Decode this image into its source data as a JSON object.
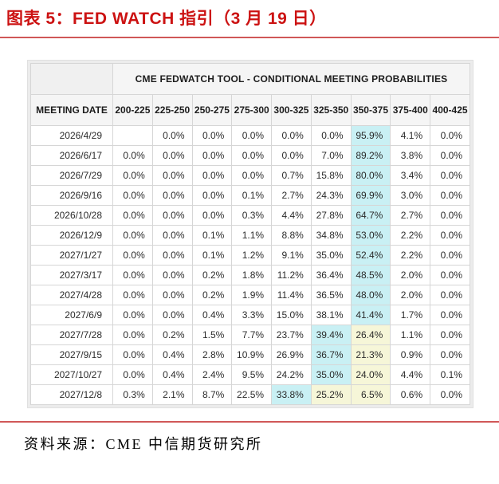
{
  "title": "图表 5：FED WATCH 指引（3 月 19 日）",
  "source": "资料来源：CME  中信期货研究所",
  "colors": {
    "accent_red": "#cc1212",
    "rule_red": "#d05858",
    "highlight_cyan": "#c9f0f4",
    "highlight_yellow": "#f6f6d8",
    "header_bg": "#f5f5f5",
    "grid_border": "#d6d6d6"
  },
  "table": {
    "spanner": "CME FEDWATCH TOOL - CONDITIONAL MEETING PROBABILITIES",
    "date_header": "MEETING DATE",
    "rate_headers": [
      "200-225",
      "225-250",
      "250-275",
      "275-300",
      "300-325",
      "325-350",
      "350-375",
      "375-400",
      "400-425"
    ],
    "rows": [
      {
        "date": "2026/4/29",
        "values": [
          "",
          "0.0%",
          "0.0%",
          "0.0%",
          "0.0%",
          "0.0%",
          "95.9%",
          "4.1%",
          "0.0%"
        ],
        "highlights": [
          "",
          "",
          "",
          "",
          "",
          "",
          "cyan",
          "",
          ""
        ]
      },
      {
        "date": "2026/6/17",
        "values": [
          "0.0%",
          "0.0%",
          "0.0%",
          "0.0%",
          "0.0%",
          "7.0%",
          "89.2%",
          "3.8%",
          "0.0%"
        ],
        "highlights": [
          "",
          "",
          "",
          "",
          "",
          "",
          "cyan",
          "",
          ""
        ]
      },
      {
        "date": "2026/7/29",
        "values": [
          "0.0%",
          "0.0%",
          "0.0%",
          "0.0%",
          "0.7%",
          "15.8%",
          "80.0%",
          "3.4%",
          "0.0%"
        ],
        "highlights": [
          "",
          "",
          "",
          "",
          "",
          "",
          "cyan",
          "",
          ""
        ]
      },
      {
        "date": "2026/9/16",
        "values": [
          "0.0%",
          "0.0%",
          "0.0%",
          "0.1%",
          "2.7%",
          "24.3%",
          "69.9%",
          "3.0%",
          "0.0%"
        ],
        "highlights": [
          "",
          "",
          "",
          "",
          "",
          "",
          "cyan",
          "",
          ""
        ]
      },
      {
        "date": "2026/10/28",
        "values": [
          "0.0%",
          "0.0%",
          "0.0%",
          "0.3%",
          "4.4%",
          "27.8%",
          "64.7%",
          "2.7%",
          "0.0%"
        ],
        "highlights": [
          "",
          "",
          "",
          "",
          "",
          "",
          "cyan",
          "",
          ""
        ]
      },
      {
        "date": "2026/12/9",
        "values": [
          "0.0%",
          "0.0%",
          "0.1%",
          "1.1%",
          "8.8%",
          "34.8%",
          "53.0%",
          "2.2%",
          "0.0%"
        ],
        "highlights": [
          "",
          "",
          "",
          "",
          "",
          "",
          "cyan",
          "",
          ""
        ]
      },
      {
        "date": "2027/1/27",
        "values": [
          "0.0%",
          "0.0%",
          "0.1%",
          "1.2%",
          "9.1%",
          "35.0%",
          "52.4%",
          "2.2%",
          "0.0%"
        ],
        "highlights": [
          "",
          "",
          "",
          "",
          "",
          "",
          "cyan",
          "",
          ""
        ]
      },
      {
        "date": "2027/3/17",
        "values": [
          "0.0%",
          "0.0%",
          "0.2%",
          "1.8%",
          "11.2%",
          "36.4%",
          "48.5%",
          "2.0%",
          "0.0%"
        ],
        "highlights": [
          "",
          "",
          "",
          "",
          "",
          "",
          "cyan",
          "",
          ""
        ]
      },
      {
        "date": "2027/4/28",
        "values": [
          "0.0%",
          "0.0%",
          "0.2%",
          "1.9%",
          "11.4%",
          "36.5%",
          "48.0%",
          "2.0%",
          "0.0%"
        ],
        "highlights": [
          "",
          "",
          "",
          "",
          "",
          "",
          "cyan",
          "",
          ""
        ]
      },
      {
        "date": "2027/6/9",
        "values": [
          "0.0%",
          "0.0%",
          "0.4%",
          "3.3%",
          "15.0%",
          "38.1%",
          "41.4%",
          "1.7%",
          "0.0%"
        ],
        "highlights": [
          "",
          "",
          "",
          "",
          "",
          "",
          "cyan",
          "",
          ""
        ]
      },
      {
        "date": "2027/7/28",
        "values": [
          "0.0%",
          "0.2%",
          "1.5%",
          "7.7%",
          "23.7%",
          "39.4%",
          "26.4%",
          "1.1%",
          "0.0%"
        ],
        "highlights": [
          "",
          "",
          "",
          "",
          "",
          "cyan",
          "yellow",
          "",
          ""
        ]
      },
      {
        "date": "2027/9/15",
        "values": [
          "0.0%",
          "0.4%",
          "2.8%",
          "10.9%",
          "26.9%",
          "36.7%",
          "21.3%",
          "0.9%",
          "0.0%"
        ],
        "highlights": [
          "",
          "",
          "",
          "",
          "",
          "cyan",
          "yellow",
          "",
          ""
        ]
      },
      {
        "date": "2027/10/27",
        "values": [
          "0.0%",
          "0.4%",
          "2.4%",
          "9.5%",
          "24.2%",
          "35.0%",
          "24.0%",
          "4.4%",
          "0.1%"
        ],
        "highlights": [
          "",
          "",
          "",
          "",
          "",
          "cyan",
          "yellow",
          "",
          ""
        ]
      },
      {
        "date": "2027/12/8",
        "values": [
          "0.3%",
          "2.1%",
          "8.7%",
          "22.5%",
          "33.8%",
          "25.2%",
          "6.5%",
          "0.6%",
          "0.0%"
        ],
        "highlights": [
          "",
          "",
          "",
          "",
          "cyan",
          "yellow",
          "yellow",
          "",
          ""
        ]
      }
    ]
  }
}
